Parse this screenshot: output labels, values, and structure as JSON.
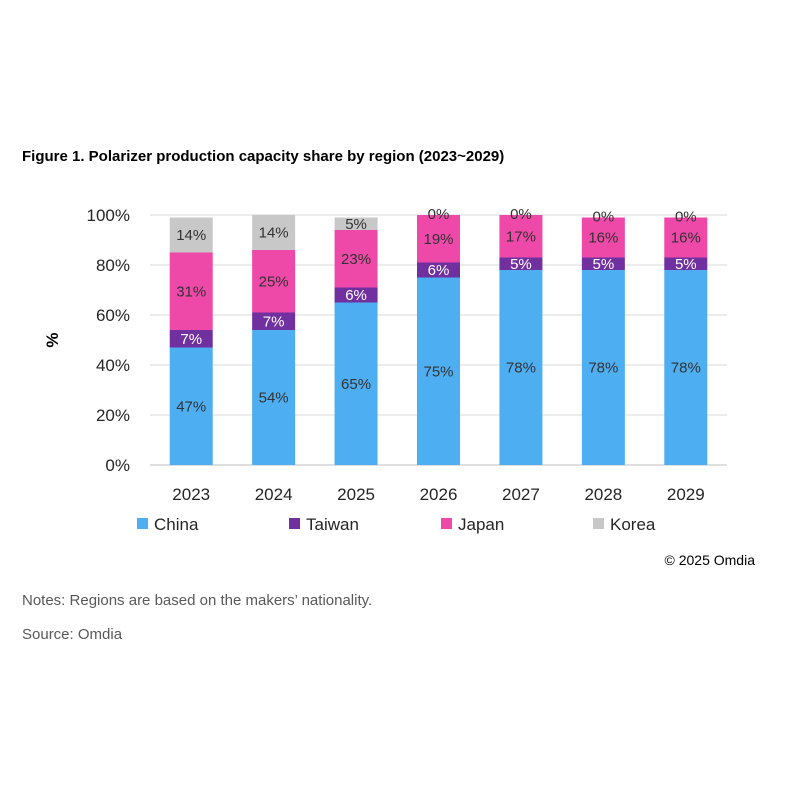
{
  "title": "Figure 1. Polarizer production capacity share by region (2023~2029)",
  "copyright": "© 2025 Omdia",
  "notes": "Notes: Regions are based on the makers’ nationality.",
  "source": "Source: Omdia",
  "chart_data": {
    "type": "bar",
    "stacked": true,
    "title": "Figure 1. Polarizer production capacity share by region (2023~2029)",
    "xlabel": "",
    "ylabel": "%",
    "ylim": [
      0,
      100
    ],
    "yticks": [
      "0%",
      "20%",
      "40%",
      "60%",
      "80%",
      "100%"
    ],
    "ytick_values": [
      0,
      20,
      40,
      60,
      80,
      100
    ],
    "grid": true,
    "legend_position": "bottom",
    "categories": [
      "2023",
      "2024",
      "2025",
      "2026",
      "2027",
      "2028",
      "2029"
    ],
    "series": [
      {
        "name": "China",
        "color": "#4daef2",
        "label_color": "#333333",
        "values": [
          47,
          54,
          65,
          75,
          78,
          78,
          78
        ]
      },
      {
        "name": "Taiwan",
        "color": "#7030a0",
        "label_color": "#ffffff",
        "values": [
          7,
          7,
          6,
          6,
          5,
          5,
          5
        ]
      },
      {
        "name": "Japan",
        "color": "#ee48a8",
        "label_color": "#333333",
        "values": [
          31,
          25,
          23,
          19,
          17,
          16,
          16
        ]
      },
      {
        "name": "Korea",
        "color": "#c8c8c8",
        "label_color": "#333333",
        "values": [
          14,
          14,
          5,
          0,
          0,
          0,
          0
        ]
      }
    ]
  }
}
